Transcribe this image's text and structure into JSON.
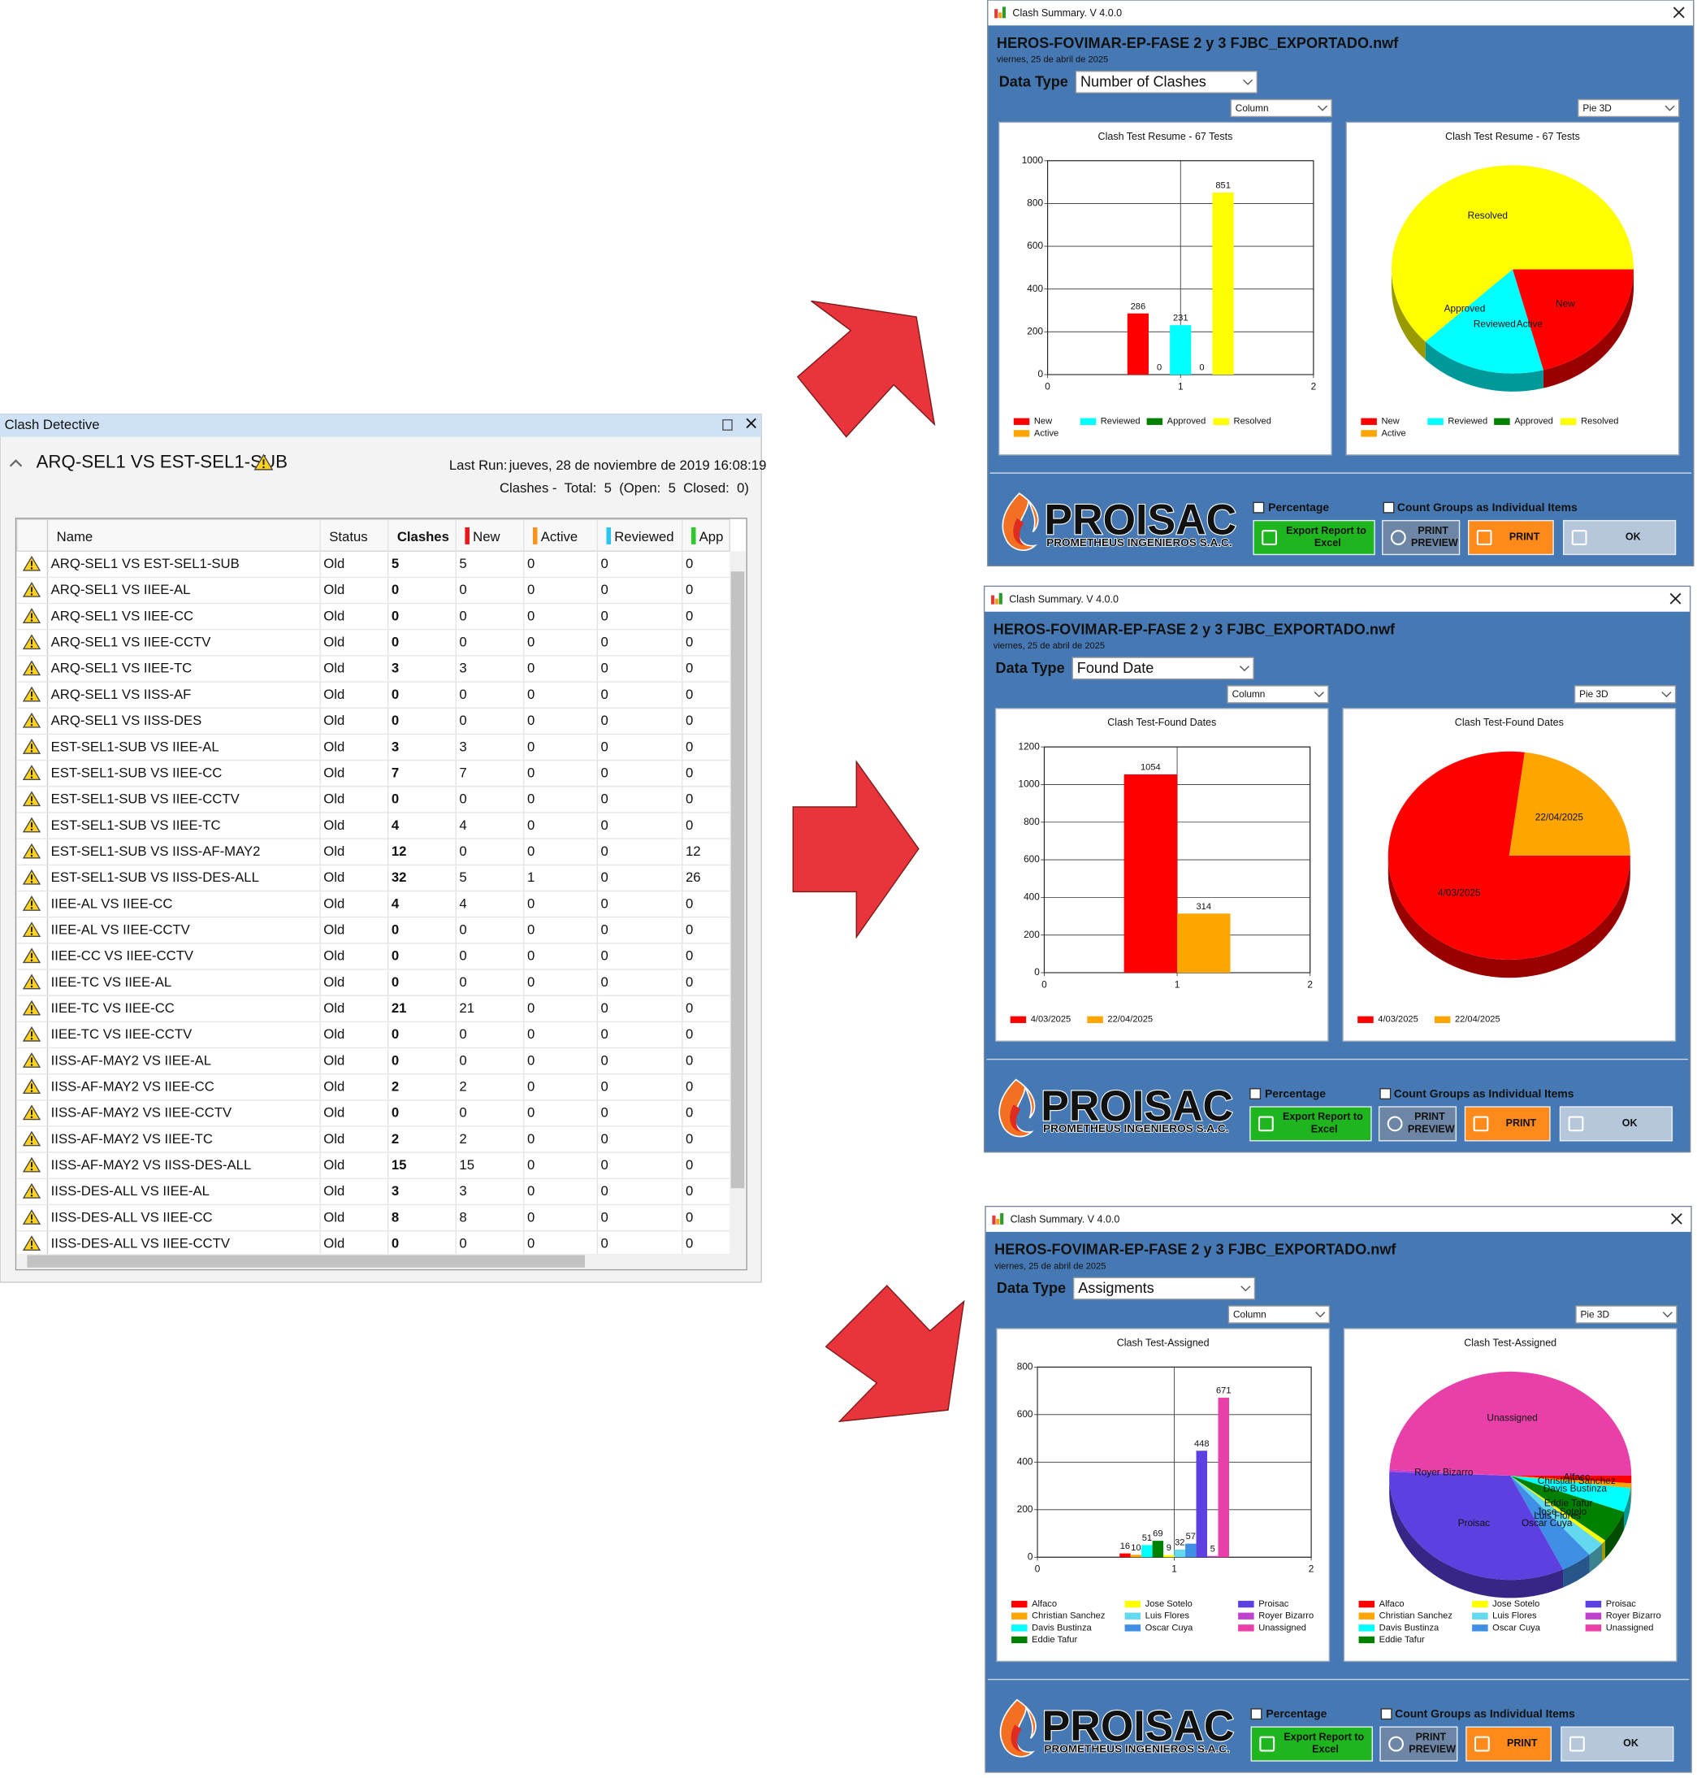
{
  "clash_detective": {
    "panel_title": "Clash Detective",
    "test_name": "ARQ-SEL1 VS EST-SEL1-SUB",
    "last_run_label": "Last Run:",
    "last_run": "jueves, 28 de noviembre de 2019 16:08:19",
    "clashes_summary": "Clashes -  Total:  5  (Open:  5  Closed:  0)",
    "table": {
      "columns": [
        "Name",
        "Status",
        "Clashes",
        "New",
        "Active",
        "Reviewed",
        "App"
      ],
      "rows": [
        [
          "ARQ-SEL1 VS EST-SEL1-SUB",
          "Old",
          5,
          5,
          0,
          0,
          0
        ],
        [
          "ARQ-SEL1 VS IIEE-AL",
          "Old",
          0,
          0,
          0,
          0,
          0
        ],
        [
          "ARQ-SEL1 VS IIEE-CC",
          "Old",
          0,
          0,
          0,
          0,
          0
        ],
        [
          "ARQ-SEL1 VS IIEE-CCTV",
          "Old",
          0,
          0,
          0,
          0,
          0
        ],
        [
          "ARQ-SEL1 VS IIEE-TC",
          "Old",
          3,
          3,
          0,
          0,
          0
        ],
        [
          "ARQ-SEL1 VS IISS-AF",
          "Old",
          0,
          0,
          0,
          0,
          0
        ],
        [
          "ARQ-SEL1 VS IISS-DES",
          "Old",
          0,
          0,
          0,
          0,
          0
        ],
        [
          "EST-SEL1-SUB VS IIEE-AL",
          "Old",
          3,
          3,
          0,
          0,
          0
        ],
        [
          "EST-SEL1-SUB VS IIEE-CC",
          "Old",
          7,
          7,
          0,
          0,
          0
        ],
        [
          "EST-SEL1-SUB VS IIEE-CCTV",
          "Old",
          0,
          0,
          0,
          0,
          0
        ],
        [
          "EST-SEL1-SUB VS IIEE-TC",
          "Old",
          4,
          4,
          0,
          0,
          0
        ],
        [
          "EST-SEL1-SUB VS IISS-AF-MAY2",
          "Old",
          12,
          0,
          0,
          0,
          12
        ],
        [
          "EST-SEL1-SUB VS IISS-DES-ALL",
          "Old",
          32,
          5,
          1,
          0,
          26
        ],
        [
          "IIEE-AL VS IIEE-CC",
          "Old",
          4,
          4,
          0,
          0,
          0
        ],
        [
          "IIEE-AL VS IIEE-CCTV",
          "Old",
          0,
          0,
          0,
          0,
          0
        ],
        [
          "IIEE-CC VS IIEE-CCTV",
          "Old",
          0,
          0,
          0,
          0,
          0
        ],
        [
          "IIEE-TC VS IIEE-AL",
          "Old",
          0,
          0,
          0,
          0,
          0
        ],
        [
          "IIEE-TC VS IIEE-CC",
          "Old",
          21,
          21,
          0,
          0,
          0
        ],
        [
          "IIEE-TC VS IIEE-CCTV",
          "Old",
          0,
          0,
          0,
          0,
          0
        ],
        [
          "IISS-AF-MAY2 VS IIEE-AL",
          "Old",
          0,
          0,
          0,
          0,
          0
        ],
        [
          "IISS-AF-MAY2 VS IIEE-CC",
          "Old",
          2,
          2,
          0,
          0,
          0
        ],
        [
          "IISS-AF-MAY2 VS IIEE-CCTV",
          "Old",
          0,
          0,
          0,
          0,
          0
        ],
        [
          "IISS-AF-MAY2 VS IIEE-TC",
          "Old",
          2,
          2,
          0,
          0,
          0
        ],
        [
          "IISS-AF-MAY2 VS IISS-DES-ALL",
          "Old",
          15,
          15,
          0,
          0,
          0
        ],
        [
          "IISS-DES-ALL VS IIEE-AL",
          "Old",
          3,
          3,
          0,
          0,
          0
        ],
        [
          "IISS-DES-ALL VS IIEE-CC",
          "Old",
          8,
          8,
          0,
          0,
          0
        ],
        [
          "IISS-DES-ALL VS IIEE-CCTV",
          "Old",
          0,
          0,
          0,
          0,
          0
        ]
      ]
    }
  },
  "summaries": [
    {
      "window_title": "Clash Summary. V 4.0.0",
      "file_name": "HEROS-FOVIMAR-EP-FASE 2 y 3 FJBC_EXPORTADO.nwf",
      "date": "viernes, 25 de abril de 2025",
      "data_type_label": "Data Type",
      "data_type": "Number of Clashes",
      "column_chart_select": "Column",
      "pie_chart_select": "Pie 3D",
      "column_chart": {
        "type": "bar",
        "title": "Clash Test Resume - 67 Tests",
        "x": [
          1
        ],
        "series": [
          {
            "name": "New",
            "color": "#ff0000",
            "values": [
              286
            ]
          },
          {
            "name": "Active",
            "color": "#ffa500",
            "values": [
              0
            ]
          },
          {
            "name": "Reviewed",
            "color": "#00ffff",
            "values": [
              231
            ]
          },
          {
            "name": "Approved",
            "color": "#008000",
            "values": [
              0
            ]
          },
          {
            "name": "Resolved",
            "color": "#ffff00",
            "values": [
              851
            ]
          }
        ],
        "xlim": [
          0,
          2
        ],
        "xticks": [
          0,
          1,
          2
        ],
        "ylim": [
          0,
          1000
        ],
        "yticks": [
          0,
          200,
          400,
          600,
          800,
          1000
        ],
        "grid": true
      },
      "pie_chart": {
        "type": "pie",
        "title": "Clash Test Resume - 67 Tests",
        "categories": [
          "New",
          "Active",
          "Reviewed",
          "Approved",
          "Resolved"
        ],
        "values": [
          286,
          0,
          231,
          0,
          851
        ],
        "colors": [
          "#ff0000",
          "#ffa500",
          "#00ffff",
          "#008000",
          "#ffff00"
        ]
      },
      "percentage_label": "Percentage",
      "count_groups_label": "Count Groups as Individual Items",
      "logo": "PROISAC",
      "logo_subtitle": "PROMETHEUS INGENIEROS S.A.C.",
      "buttons": [
        "Export Report to Excel",
        "PRINT PREVIEW",
        "PRINT",
        "OK"
      ]
    },
    {
      "window_title": "Clash Summary. V 4.0.0",
      "file_name": "HEROS-FOVIMAR-EP-FASE 2 y 3 FJBC_EXPORTADO.nwf",
      "date": "viernes, 25 de abril de 2025",
      "data_type_label": "Data Type",
      "data_type": "Found Date",
      "column_chart_select": "Column",
      "pie_chart_select": "Pie 3D",
      "column_chart": {
        "type": "bar",
        "title": "Clash Test-Found Dates",
        "x": [
          1
        ],
        "series": [
          {
            "name": "4/03/2025",
            "color": "#ff0000",
            "values": [
              1054
            ]
          },
          {
            "name": "22/04/2025",
            "color": "#ffa500",
            "values": [
              314
            ]
          }
        ],
        "xlim": [
          0,
          2
        ],
        "xticks": [
          0,
          1,
          2
        ],
        "ylim": [
          0,
          1200
        ],
        "yticks": [
          0,
          200,
          400,
          600,
          800,
          1000,
          1200
        ],
        "grid": true
      },
      "pie_chart": {
        "type": "pie",
        "title": "Clash Test-Found Dates",
        "categories": [
          "4/03/2025",
          "22/04/2025"
        ],
        "values": [
          1054,
          314
        ],
        "colors": [
          "#ff0000",
          "#ffa500"
        ]
      },
      "percentage_label": "Percentage",
      "count_groups_label": "Count Groups as Individual Items",
      "logo": "PROISAC",
      "logo_subtitle": "PROMETHEUS INGENIEROS S.A.C.",
      "buttons": [
        "Export Report to Excel",
        "PRINT PREVIEW",
        "PRINT",
        "OK"
      ]
    },
    {
      "window_title": "Clash Summary. V 4.0.0",
      "file_name": "HEROS-FOVIMAR-EP-FASE 2 y 3 FJBC_EXPORTADO.nwf",
      "date": "viernes, 25 de abril de 2025",
      "data_type_label": "Data Type",
      "data_type": "Assigments",
      "column_chart_select": "Column",
      "pie_chart_select": "Pie 3D",
      "column_chart": {
        "type": "bar",
        "title": "Clash Test-Assigned",
        "x": [
          1
        ],
        "series": [
          {
            "name": "Alfaco",
            "color": "#ff0000",
            "values": [
              16
            ]
          },
          {
            "name": "Christian Sanchez",
            "color": "#ffa500",
            "values": [
              10
            ]
          },
          {
            "name": "Davis Bustinza",
            "color": "#00ffff",
            "values": [
              51
            ]
          },
          {
            "name": "Eddie Tafur",
            "color": "#008000",
            "values": [
              69
            ]
          },
          {
            "name": "Jose Sotelo",
            "color": "#ffff00",
            "values": [
              9
            ]
          },
          {
            "name": "Luis Flores",
            "color": "#62d9ee",
            "values": [
              32
            ]
          },
          {
            "name": "Oscar Cuya",
            "color": "#3f8fe6",
            "values": [
              57
            ]
          },
          {
            "name": "Proisac",
            "color": "#5e3fe0",
            "values": [
              448
            ]
          },
          {
            "name": "Royer Bizarro",
            "color": "#c040d0",
            "values": [
              5
            ]
          },
          {
            "name": "Unassigned",
            "color": "#e83fa8",
            "values": [
              671
            ]
          }
        ],
        "xlim": [
          0,
          2
        ],
        "xticks": [
          0,
          1,
          2
        ],
        "ylim": [
          0,
          800
        ],
        "yticks": [
          0,
          200,
          400,
          600,
          800
        ],
        "grid": true
      },
      "pie_chart": {
        "type": "pie",
        "title": "Clash Test-Assigned",
        "categories": [
          "Alfaco",
          "Christian Sanchez",
          "Davis Bustinza",
          "Eddie Tafur",
          "Jose Sotelo",
          "Luis Flores",
          "Oscar Cuya",
          "Proisac",
          "Royer Bizarro",
          "Unassigned"
        ],
        "values": [
          16,
          10,
          51,
          69,
          9,
          32,
          57,
          448,
          5,
          671
        ],
        "colors": [
          "#ff0000",
          "#ffa500",
          "#00ffff",
          "#008000",
          "#ffff00",
          "#62d9ee",
          "#3f8fe6",
          "#5e3fe0",
          "#c040d0",
          "#e83fa8"
        ]
      },
      "percentage_label": "Percentage",
      "count_groups_label": "Count Groups as Individual Items",
      "logo": "PROISAC",
      "logo_subtitle": "PROMETHEUS INGENIEROS S.A.C.",
      "buttons": [
        "Export Report to Excel",
        "PRINT PREVIEW",
        "PRINT",
        "OK"
      ]
    }
  ]
}
